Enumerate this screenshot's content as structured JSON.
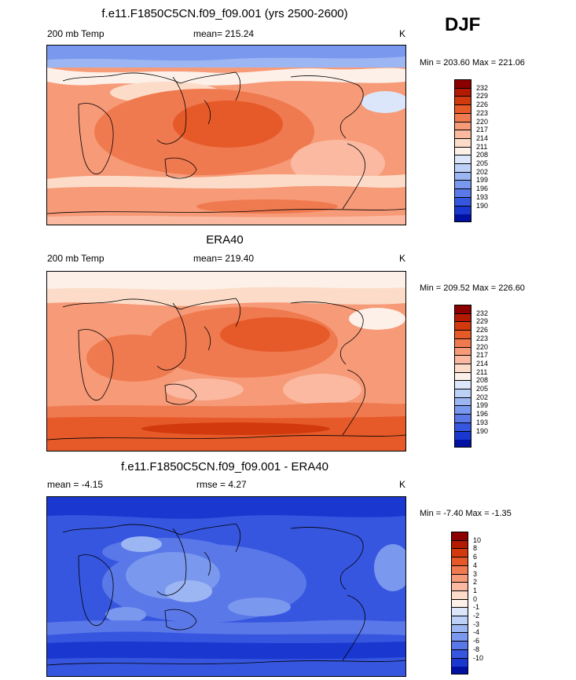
{
  "season": "DJF",
  "panels": [
    {
      "title": "f.e11.F1850C5CN.f09_f09.001 (yrs 2500-2600)",
      "left": "200 mb Temp",
      "center": "mean= 215.24",
      "units": "K",
      "minmax": "Min = 203.60 Max = 221.06",
      "palette": "temp"
    },
    {
      "title": "ERA40",
      "left": "200 mb Temp",
      "center": "mean= 219.40",
      "units": "K",
      "minmax": "Min = 209.52 Max = 226.60",
      "palette": "temp"
    },
    {
      "title": "f.e11.F1850C5CN.f09_f09.001 - ERA40",
      "left": "mean =  -4.15",
      "center": "rmse =   4.27",
      "units": "K",
      "minmax": "Min =  -7.40 Max =  -1.35",
      "palette": "diff"
    }
  ],
  "colorbars": {
    "temp": {
      "labels": [
        "232",
        "229",
        "226",
        "223",
        "220",
        "217",
        "214",
        "211",
        "208",
        "205",
        "202",
        "199",
        "196",
        "193",
        "190"
      ],
      "colors": [
        "#8c0000",
        "#b31a00",
        "#d23a0e",
        "#e65a2a",
        "#f07a50",
        "#f69a78",
        "#fab9a0",
        "#fcdcc8",
        "#fdf0e8",
        "#dbe6fb",
        "#bcd0f8",
        "#9cb6f3",
        "#7a98ee",
        "#5a78e8",
        "#3656e0",
        "#1a38d0",
        "#0010a0"
      ]
    },
    "diff": {
      "labels": [
        "10",
        "8",
        "6",
        "4",
        "3",
        "2",
        "1",
        "0",
        "-1",
        "-2",
        "-3",
        "-4",
        "-6",
        "-8",
        "-10"
      ],
      "colors": [
        "#8c0000",
        "#b31a00",
        "#d23a0e",
        "#e65a2a",
        "#f07a50",
        "#f69a78",
        "#fab9a0",
        "#fcdcc8",
        "#fdf0e8",
        "#dbe6fb",
        "#bcd0f8",
        "#9cb6f3",
        "#7a98ee",
        "#5a78e8",
        "#3656e0",
        "#1a38d0",
        "#0010a0"
      ]
    }
  }
}
